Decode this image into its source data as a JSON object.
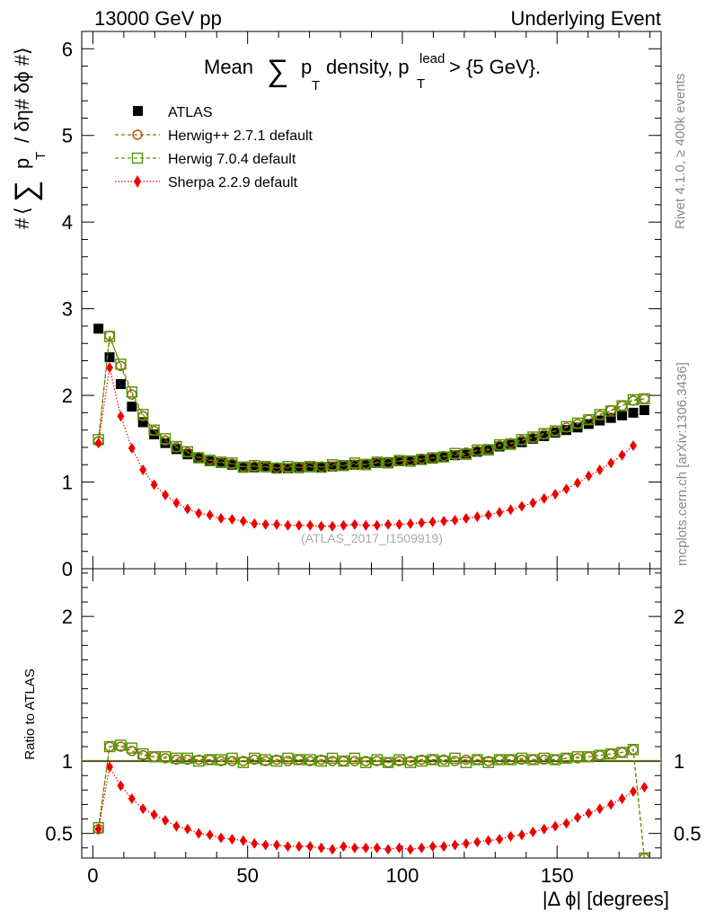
{
  "header": {
    "left": "13000 GeV pp",
    "right": "Underlying Event",
    "title_main": "Mean",
    "title_sum": "∑",
    "title_p": "p",
    "title_sub_T": "T",
    "title_density": "density, p",
    "title_sup_lead": "lead",
    "title_sub_T2": "T",
    "title_tail": "> {5 GeV}."
  },
  "side": {
    "rivet": "Rivet 4.1.0, ≥ 400k events",
    "mcplots": "mcplots.cern.ch [arXiv:1306.3436]"
  },
  "watermark": "(ATLAS_2017_I1509919)",
  "ylabel_top": {
    "hash1": "#",
    "angle": "⟨",
    "sum": "∑",
    "p": "p",
    "sub_T": "T",
    "rest": "/ δη# δϕ #⟩"
  },
  "ylabel_bottom": "Ratio to ATLAS",
  "xlabel": "|Δ ϕ| [degrees]",
  "legend": [
    {
      "label": "ATLAS",
      "color": "#000000",
      "marker": "square-filled"
    },
    {
      "label": "Herwig++ 2.7.1 default",
      "color": "#a05a00",
      "marker": "circle-open"
    },
    {
      "label": "Herwig 7.0.4 default",
      "color": "#4a9a00",
      "marker": "square-open"
    },
    {
      "label": "Sherpa 2.2.9 default",
      "color": "#ee0000",
      "marker": "diamond-filled"
    }
  ],
  "chart_data": {
    "type": "scatter",
    "xlim": [
      -3.6,
      183.6
    ],
    "top_panel": {
      "ylim": [
        0,
        6.2
      ],
      "yticks": [
        0,
        1,
        2,
        3,
        4,
        5,
        6
      ],
      "ytick_labels": [
        "0",
        "1",
        "2",
        "3",
        "4",
        "5",
        "6"
      ],
      "x": [
        1.8,
        5.4,
        9.0,
        12.6,
        16.2,
        19.8,
        23.4,
        27.0,
        30.6,
        34.2,
        37.8,
        41.4,
        45.0,
        48.6,
        52.2,
        55.8,
        59.4,
        63.0,
        66.6,
        70.2,
        73.8,
        77.4,
        81.0,
        84.6,
        88.2,
        91.8,
        95.4,
        99.0,
        102.6,
        106.2,
        109.8,
        113.4,
        117.0,
        120.6,
        124.2,
        127.8,
        131.4,
        135.0,
        138.6,
        142.2,
        145.8,
        149.4,
        153.0,
        156.6,
        160.2,
        163.8,
        167.4,
        171.0,
        174.6,
        178.2
      ],
      "series": [
        {
          "name": "ATLAS",
          "values": [
            2.77,
            2.44,
            2.13,
            1.87,
            1.69,
            1.55,
            1.45,
            1.38,
            1.32,
            1.28,
            1.24,
            1.22,
            1.2,
            1.18,
            1.17,
            1.17,
            1.16,
            1.16,
            1.16,
            1.17,
            1.17,
            1.18,
            1.19,
            1.2,
            1.21,
            1.22,
            1.23,
            1.24,
            1.25,
            1.26,
            1.27,
            1.29,
            1.31,
            1.33,
            1.35,
            1.38,
            1.41,
            1.43,
            1.46,
            1.5,
            1.53,
            1.57,
            1.6,
            1.63,
            1.67,
            1.71,
            1.74,
            1.77,
            1.8,
            1.83
          ]
        },
        {
          "name": "Herwig++ 2.7.1 default",
          "values": [
            1.47,
            2.69,
            2.34,
            2.01,
            1.76,
            1.59,
            1.48,
            1.4,
            1.34,
            1.29,
            1.26,
            1.22,
            1.21,
            1.18,
            1.18,
            1.17,
            1.17,
            1.16,
            1.17,
            1.17,
            1.18,
            1.18,
            1.19,
            1.2,
            1.21,
            1.22,
            1.22,
            1.24,
            1.25,
            1.27,
            1.28,
            1.3,
            1.31,
            1.34,
            1.36,
            1.38,
            1.42,
            1.45,
            1.48,
            1.51,
            1.55,
            1.59,
            1.63,
            1.67,
            1.72,
            1.77,
            1.83,
            1.88,
            1.94,
            1.96
          ]
        },
        {
          "name": "Herwig 7.0.4 default",
          "values": [
            1.49,
            2.68,
            2.36,
            2.04,
            1.78,
            1.6,
            1.5,
            1.41,
            1.35,
            1.28,
            1.25,
            1.23,
            1.22,
            1.17,
            1.19,
            1.18,
            1.16,
            1.18,
            1.17,
            1.18,
            1.17,
            1.2,
            1.19,
            1.22,
            1.2,
            1.23,
            1.22,
            1.25,
            1.24,
            1.26,
            1.28,
            1.29,
            1.33,
            1.32,
            1.37,
            1.37,
            1.43,
            1.44,
            1.49,
            1.52,
            1.56,
            1.59,
            1.64,
            1.68,
            1.72,
            1.78,
            1.82,
            1.88,
            1.95,
            1.96
          ]
        },
        {
          "name": "Sherpa 2.2.9 default",
          "values": [
            1.45,
            2.32,
            1.76,
            1.39,
            1.14,
            0.97,
            0.85,
            0.76,
            0.69,
            0.64,
            0.62,
            0.58,
            0.57,
            0.55,
            0.52,
            0.51,
            0.51,
            0.5,
            0.5,
            0.5,
            0.49,
            0.49,
            0.5,
            0.51,
            0.5,
            0.5,
            0.51,
            0.51,
            0.52,
            0.53,
            0.54,
            0.55,
            0.56,
            0.58,
            0.6,
            0.62,
            0.65,
            0.68,
            0.72,
            0.76,
            0.81,
            0.86,
            0.92,
            0.99,
            1.07,
            1.14,
            1.22,
            1.31,
            1.42,
            null
          ]
        }
      ]
    },
    "bottom_panel": {
      "ylim": [
        0.33,
        2.33
      ],
      "yticks": [
        0.5,
        1,
        2
      ],
      "ytick_labels": [
        "0.5",
        "1",
        "2"
      ],
      "xticks": [
        0,
        50,
        100,
        150
      ],
      "xtick_labels": [
        "0",
        "50",
        "100",
        "150"
      ],
      "series": [
        {
          "name": "Herwig++ 2.7.1 default",
          "values": [
            0.53,
            1.1,
            1.1,
            1.07,
            1.04,
            1.03,
            1.02,
            1.01,
            1.01,
            1.01,
            1.01,
            1.0,
            1.0,
            1.0,
            1.01,
            1.0,
            1.01,
            1.0,
            1.01,
            1.0,
            1.01,
            1.0,
            1.0,
            1.0,
            1.0,
            1.0,
            0.99,
            1.0,
            1.0,
            1.01,
            1.01,
            1.01,
            1.0,
            1.01,
            1.01,
            1.0,
            1.01,
            1.01,
            1.01,
            1.01,
            1.01,
            1.01,
            1.02,
            1.02,
            1.03,
            1.04,
            1.05,
            1.06,
            1.08,
            0.33
          ]
        },
        {
          "name": "Herwig 7.0.4 default",
          "values": [
            0.54,
            1.1,
            1.11,
            1.09,
            1.05,
            1.03,
            1.03,
            1.02,
            1.02,
            1.0,
            1.01,
            1.01,
            1.02,
            0.99,
            1.02,
            1.01,
            1.0,
            1.02,
            1.01,
            1.01,
            1.0,
            1.02,
            1.0,
            1.02,
            0.99,
            1.01,
            0.99,
            1.01,
            0.99,
            1.0,
            1.01,
            1.0,
            1.02,
            0.99,
            1.01,
            0.99,
            1.01,
            1.01,
            1.02,
            1.01,
            1.02,
            1.01,
            1.02,
            1.03,
            1.03,
            1.04,
            1.05,
            1.06,
            1.08,
            0.33
          ]
        },
        {
          "name": "Sherpa 2.2.9 default",
          "values": [
            0.53,
            0.96,
            0.83,
            0.74,
            0.67,
            0.63,
            0.59,
            0.55,
            0.53,
            0.5,
            0.49,
            0.47,
            0.46,
            0.45,
            0.43,
            0.42,
            0.42,
            0.41,
            0.41,
            0.41,
            0.4,
            0.39,
            0.41,
            0.4,
            0.4,
            0.4,
            0.39,
            0.4,
            0.39,
            0.4,
            0.41,
            0.41,
            0.42,
            0.43,
            0.44,
            0.45,
            0.46,
            0.48,
            0.49,
            0.51,
            0.53,
            0.55,
            0.57,
            0.61,
            0.64,
            0.67,
            0.7,
            0.74,
            0.79,
            0.82
          ]
        }
      ],
      "reference_line": 1.0,
      "reference_band": [
        0.99,
        1.01
      ]
    }
  }
}
